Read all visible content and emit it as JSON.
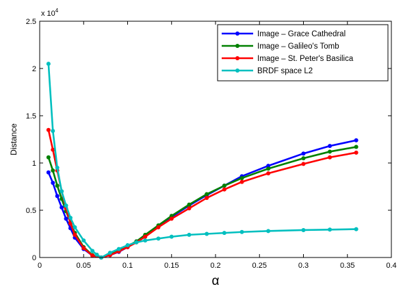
{
  "chart_data": {
    "type": "line",
    "xlabel": "α",
    "ylabel": "Distance",
    "exponent_label": "x 10",
    "exponent_power": "4",
    "xlim": [
      0,
      0.4
    ],
    "ylim": [
      0,
      25000
    ],
    "xticks": [
      "0",
      "0.05",
      "0.1",
      "0.15",
      "0.2",
      "0.25",
      "0.3",
      "0.35",
      "0.4"
    ],
    "yticks": [
      "0",
      "0.5",
      "1",
      "1.5",
      "2",
      "2.5"
    ],
    "grid": false,
    "legend_position": "top-right",
    "series": [
      {
        "name": "Image – Grace Cathedral",
        "color": "#0000ff",
        "points": [
          [
            0.01,
            9000
          ],
          [
            0.015,
            7900
          ],
          [
            0.02,
            6500
          ],
          [
            0.025,
            5300
          ],
          [
            0.03,
            4100
          ],
          [
            0.035,
            3100
          ],
          [
            0.04,
            2100
          ],
          [
            0.05,
            900
          ],
          [
            0.06,
            200
          ],
          [
            0.07,
            0
          ],
          [
            0.08,
            250
          ],
          [
            0.09,
            600
          ],
          [
            0.1,
            1100
          ],
          [
            0.11,
            1700
          ],
          [
            0.12,
            2300
          ],
          [
            0.135,
            3300
          ],
          [
            0.15,
            4300
          ],
          [
            0.17,
            5500
          ],
          [
            0.19,
            6600
          ],
          [
            0.21,
            7600
          ],
          [
            0.23,
            8600
          ],
          [
            0.26,
            9700
          ],
          [
            0.3,
            11000
          ],
          [
            0.33,
            11800
          ],
          [
            0.36,
            12400
          ]
        ]
      },
      {
        "name": "Image – Galileo's Tomb",
        "color": "#008000",
        "points": [
          [
            0.01,
            10600
          ],
          [
            0.015,
            9200
          ],
          [
            0.02,
            7600
          ],
          [
            0.025,
            6200
          ],
          [
            0.03,
            4900
          ],
          [
            0.035,
            3700
          ],
          [
            0.04,
            2600
          ],
          [
            0.05,
            1100
          ],
          [
            0.06,
            250
          ],
          [
            0.07,
            0
          ],
          [
            0.08,
            300
          ],
          [
            0.09,
            700
          ],
          [
            0.1,
            1200
          ],
          [
            0.11,
            1700
          ],
          [
            0.12,
            2400
          ],
          [
            0.135,
            3400
          ],
          [
            0.15,
            4400
          ],
          [
            0.17,
            5600
          ],
          [
            0.19,
            6700
          ],
          [
            0.21,
            7600
          ],
          [
            0.23,
            8400
          ],
          [
            0.26,
            9400
          ],
          [
            0.3,
            10500
          ],
          [
            0.33,
            11200
          ],
          [
            0.36,
            11700
          ]
        ]
      },
      {
        "name": "Image – St. Peter's Basilica",
        "color": "#ff0000",
        "points": [
          [
            0.01,
            13500
          ],
          [
            0.015,
            11400
          ],
          [
            0.02,
            9200
          ],
          [
            0.025,
            7000
          ],
          [
            0.03,
            5200
          ],
          [
            0.035,
            3600
          ],
          [
            0.04,
            2400
          ],
          [
            0.05,
            1000
          ],
          [
            0.06,
            200
          ],
          [
            0.07,
            0
          ],
          [
            0.08,
            250
          ],
          [
            0.09,
            650
          ],
          [
            0.1,
            1100
          ],
          [
            0.11,
            1600
          ],
          [
            0.12,
            2200
          ],
          [
            0.135,
            3200
          ],
          [
            0.15,
            4100
          ],
          [
            0.17,
            5200
          ],
          [
            0.19,
            6300
          ],
          [
            0.21,
            7200
          ],
          [
            0.23,
            8000
          ],
          [
            0.26,
            8900
          ],
          [
            0.3,
            9900
          ],
          [
            0.33,
            10600
          ],
          [
            0.36,
            11100
          ]
        ]
      },
      {
        "name": "BRDF space L2",
        "color": "#00bfbf",
        "points": [
          [
            0.01,
            20500
          ],
          [
            0.015,
            13400
          ],
          [
            0.02,
            9500
          ],
          [
            0.025,
            7000
          ],
          [
            0.03,
            5500
          ],
          [
            0.035,
            4200
          ],
          [
            0.04,
            3200
          ],
          [
            0.05,
            1800
          ],
          [
            0.06,
            700
          ],
          [
            0.065,
            300
          ],
          [
            0.07,
            0
          ],
          [
            0.08,
            500
          ],
          [
            0.09,
            900
          ],
          [
            0.1,
            1300
          ],
          [
            0.11,
            1600
          ],
          [
            0.12,
            1800
          ],
          [
            0.135,
            2000
          ],
          [
            0.15,
            2200
          ],
          [
            0.17,
            2400
          ],
          [
            0.19,
            2500
          ],
          [
            0.21,
            2600
          ],
          [
            0.23,
            2700
          ],
          [
            0.26,
            2800
          ],
          [
            0.3,
            2900
          ],
          [
            0.33,
            2950
          ],
          [
            0.36,
            3000
          ]
        ]
      }
    ]
  }
}
